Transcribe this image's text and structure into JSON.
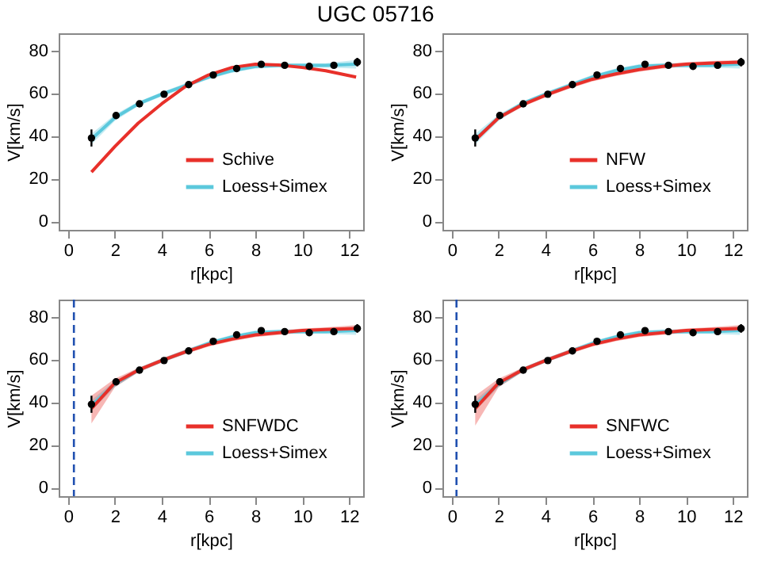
{
  "chart_data": [
    {
      "type": "line",
      "title": "UGC 05716",
      "xlabel": "r[kpc]",
      "ylabel": "V[km/s]",
      "xlim": [
        -0.4,
        12.6
      ],
      "ylim": [
        -4,
        88
      ],
      "xticks": [
        0,
        2,
        4,
        6,
        8,
        10,
        12
      ],
      "yticks": [
        0,
        20,
        40,
        60,
        80
      ],
      "grid": false,
      "legend": "bottom right",
      "series": [
        {
          "name": "Loess+Simex",
          "type": "line",
          "color": "#5bc8dc",
          "x": [
            1,
            2,
            3,
            4,
            5,
            6,
            7,
            8,
            9,
            10,
            11,
            12.3
          ],
          "values": [
            38.5,
            48.5,
            55,
            59.5,
            63.5,
            67.5,
            70.5,
            72.5,
            73,
            73,
            73,
            73.5
          ],
          "lower": [
            36,
            47,
            54,
            58.5,
            62.5,
            66.5,
            69.5,
            71.5,
            72,
            72,
            72,
            71.5
          ],
          "upper": [
            41,
            50,
            56,
            60.5,
            64.5,
            68.5,
            71.5,
            73.5,
            74,
            74,
            74,
            75.5
          ]
        },
        {
          "name": "Schive",
          "type": "line",
          "color": "#e8302a",
          "x": [
            1,
            2,
            3,
            4,
            5,
            6,
            7,
            8,
            9,
            10,
            11,
            12.3
          ],
          "values": [
            23,
            35,
            46,
            55,
            63,
            68.5,
            72,
            73.5,
            73.2,
            72,
            70.5,
            67.5
          ]
        },
        {
          "type": "scatter",
          "color": "#000000",
          "x": [
            1.0,
            2.05,
            3.05,
            4.1,
            5.15,
            6.2,
            7.2,
            8.25,
            9.25,
            10.3,
            11.35,
            12.35
          ],
          "values": [
            39,
            49.5,
            55,
            59.5,
            64,
            68.5,
            71.5,
            73.5,
            73,
            72.5,
            73,
            74.5
          ],
          "errors": [
            4,
            1.5,
            1,
            1,
            1,
            1,
            1,
            1,
            1,
            1,
            1,
            2
          ]
        }
      ]
    },
    {
      "type": "line",
      "xlabel": "r[kpc]",
      "ylabel": "V[km/s]",
      "xlim": [
        -0.4,
        12.6
      ],
      "ylim": [
        -4,
        88
      ],
      "xticks": [
        0,
        2,
        4,
        6,
        8,
        10,
        12
      ],
      "yticks": [
        0,
        20,
        40,
        60,
        80
      ],
      "grid": false,
      "legend": "bottom right",
      "series": [
        {
          "name": "Loess+Simex",
          "type": "line",
          "color": "#5bc8dc",
          "x": [
            1,
            2,
            3,
            4,
            5,
            6,
            7,
            8,
            9,
            10,
            11,
            12.3
          ],
          "values": [
            38.5,
            48.5,
            55,
            59.5,
            63.5,
            67.5,
            70.5,
            72.5,
            73,
            73,
            73,
            73.5
          ],
          "lower": [
            36,
            47,
            54,
            58.5,
            62.5,
            66.5,
            69.5,
            71.5,
            72,
            72,
            72,
            71.5
          ],
          "upper": [
            41,
            50,
            56,
            60.5,
            64.5,
            68.5,
            71.5,
            73.5,
            74,
            74,
            74,
            75.5
          ]
        },
        {
          "name": "NFW",
          "type": "line",
          "color": "#e8302a",
          "x": [
            1,
            2,
            3,
            4,
            5,
            6,
            7,
            8,
            9,
            10,
            11,
            12.3
          ],
          "values": [
            38,
            48.5,
            54.5,
            59,
            63,
            66.5,
            69,
            71,
            72.5,
            73.5,
            74,
            74.5
          ],
          "lower": [
            37,
            47.5,
            53.5,
            58,
            62,
            65.5,
            68,
            70,
            71.5,
            72.5,
            73,
            73.5
          ],
          "upper": [
            39,
            49.5,
            55.5,
            60,
            64,
            67.5,
            70,
            72,
            73.5,
            74.5,
            75,
            75.5
          ]
        },
        {
          "type": "scatter",
          "color": "#000000",
          "x": [
            1.0,
            2.05,
            3.05,
            4.1,
            5.15,
            6.2,
            7.2,
            8.25,
            9.25,
            10.3,
            11.35,
            12.35
          ],
          "values": [
            39,
            49.5,
            55,
            59.5,
            64,
            68.5,
            71.5,
            73.5,
            73,
            72.5,
            73,
            74.5
          ],
          "errors": [
            4,
            1.5,
            1,
            1,
            1,
            1,
            1,
            1,
            1,
            1,
            1,
            2
          ]
        }
      ]
    },
    {
      "type": "line",
      "xlabel": "r[kpc]",
      "ylabel": "V[km/s]",
      "xlim": [
        -0.4,
        12.6
      ],
      "ylim": [
        -4,
        88
      ],
      "xticks": [
        0,
        2,
        4,
        6,
        8,
        10,
        12
      ],
      "yticks": [
        0,
        20,
        40,
        60,
        80
      ],
      "grid": false,
      "legend": "bottom right",
      "ref_lines": [
        {
          "axis": "x",
          "value": 0.25,
          "color": "#2050b0",
          "line_style": "dashed"
        }
      ],
      "series": [
        {
          "name": "Loess+Simex",
          "type": "line",
          "color": "#5bc8dc",
          "x": [
            1,
            2,
            3,
            4,
            5,
            6,
            7,
            8,
            9,
            10,
            11,
            12.3
          ],
          "values": [
            38.5,
            48.5,
            55,
            59.5,
            63.5,
            67.5,
            70.5,
            72.5,
            73,
            73,
            73,
            73.5
          ],
          "lower": [
            36,
            47,
            54,
            58.5,
            62.5,
            66.5,
            69.5,
            71.5,
            72,
            72,
            72,
            71.5
          ],
          "upper": [
            41,
            50,
            56,
            60.5,
            64.5,
            68.5,
            71.5,
            73.5,
            74,
            74,
            74,
            75.5
          ]
        },
        {
          "name": "SNFWDC",
          "type": "line",
          "color": "#e8302a",
          "x": [
            1,
            2,
            3,
            4,
            5,
            6,
            7,
            8,
            9,
            10,
            11,
            12.3
          ],
          "values": [
            37,
            49,
            55,
            59.5,
            63.5,
            67,
            69.5,
            71.5,
            72.5,
            73.5,
            74,
            74.5
          ],
          "lower": [
            30,
            47,
            54,
            58.5,
            62.5,
            66,
            68.5,
            70.5,
            71.5,
            72.5,
            73,
            73
          ],
          "upper": [
            43,
            51,
            56,
            60.5,
            64.5,
            68,
            70.5,
            72.5,
            73.5,
            74.5,
            75,
            76
          ]
        },
        {
          "type": "scatter",
          "color": "#000000",
          "x": [
            1.0,
            2.05,
            3.05,
            4.1,
            5.15,
            6.2,
            7.2,
            8.25,
            9.25,
            10.3,
            11.35,
            12.35
          ],
          "values": [
            39,
            49.5,
            55,
            59.5,
            64,
            68.5,
            71.5,
            73.5,
            73,
            72.5,
            73,
            74.5
          ],
          "errors": [
            4,
            1.5,
            1,
            1,
            1,
            1,
            1,
            1,
            1,
            1,
            1,
            2
          ]
        }
      ]
    },
    {
      "type": "line",
      "xlabel": "r[kpc]",
      "ylabel": "V[km/s]",
      "xlim": [
        -0.4,
        12.6
      ],
      "ylim": [
        -4,
        88
      ],
      "xticks": [
        0,
        2,
        4,
        6,
        8,
        10,
        12
      ],
      "yticks": [
        0,
        20,
        40,
        60,
        80
      ],
      "grid": false,
      "legend": "bottom right",
      "ref_lines": [
        {
          "axis": "x",
          "value": 0.2,
          "color": "#2050b0",
          "line_style": "dashed"
        }
      ],
      "series": [
        {
          "name": "Loess+Simex",
          "type": "line",
          "color": "#5bc8dc",
          "x": [
            1,
            2,
            3,
            4,
            5,
            6,
            7,
            8,
            9,
            10,
            11,
            12.3
          ],
          "values": [
            38.5,
            48.5,
            55,
            59.5,
            63.5,
            67.5,
            70.5,
            72.5,
            73,
            73,
            73,
            73.5
          ],
          "lower": [
            36,
            47,
            54,
            58.5,
            62.5,
            66.5,
            69.5,
            71.5,
            72,
            72,
            72,
            71.5
          ],
          "upper": [
            41,
            50,
            56,
            60.5,
            64.5,
            68.5,
            71.5,
            73.5,
            74,
            74,
            74,
            75.5
          ]
        },
        {
          "name": "SNFWC",
          "type": "line",
          "color": "#e8302a",
          "x": [
            1,
            2,
            3,
            4,
            5,
            6,
            7,
            8,
            9,
            10,
            11,
            12.3
          ],
          "values": [
            37,
            49,
            55,
            59.5,
            63.5,
            67,
            69.5,
            71.5,
            72.5,
            73.5,
            74,
            74.5
          ],
          "lower": [
            29,
            47,
            54,
            58.5,
            62.5,
            66,
            68.5,
            70.5,
            71.5,
            72.5,
            73,
            73
          ],
          "upper": [
            43,
            51,
            56,
            60.5,
            64.5,
            68,
            70.5,
            72.5,
            73.5,
            74.5,
            75,
            76
          ]
        },
        {
          "type": "scatter",
          "color": "#000000",
          "x": [
            1.0,
            2.05,
            3.05,
            4.1,
            5.15,
            6.2,
            7.2,
            8.25,
            9.25,
            10.3,
            11.35,
            12.35
          ],
          "values": [
            39,
            49.5,
            55,
            59.5,
            64,
            68.5,
            71.5,
            73.5,
            73,
            72.5,
            73,
            74.5
          ],
          "errors": [
            4,
            1.5,
            1,
            1,
            1,
            1,
            1,
            1,
            1,
            1,
            1,
            2
          ]
        }
      ]
    }
  ]
}
